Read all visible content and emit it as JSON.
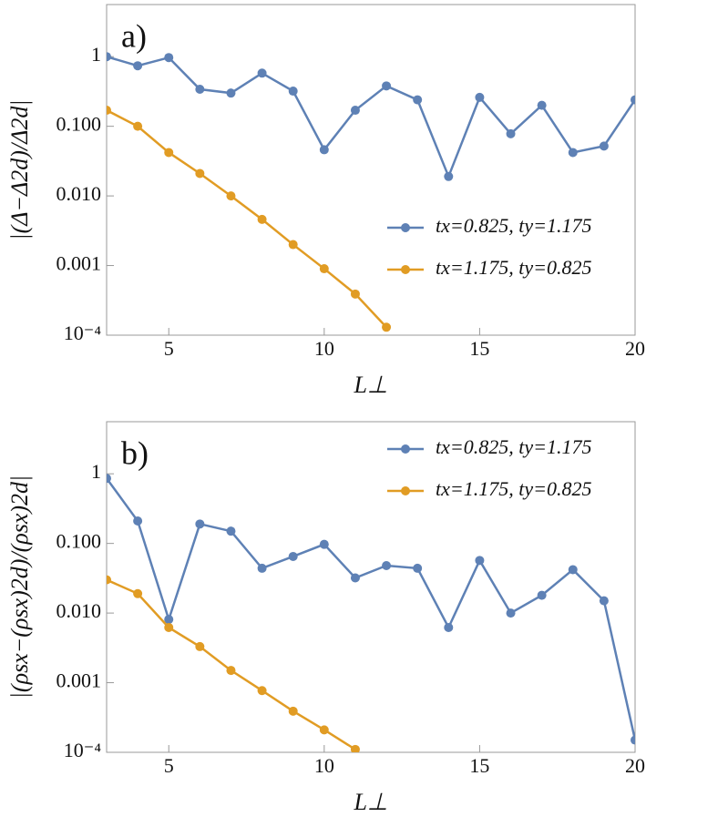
{
  "chart_data": [
    {
      "type": "line",
      "panel_label": "a)",
      "x_label": "L⊥",
      "y_label": "|(Δ−Δ2d)/Δ2d|",
      "log_y": true,
      "legend": "lower right",
      "xlim": [
        3,
        20
      ],
      "xticks": [
        5,
        10,
        15,
        20
      ],
      "ylim": [
        0.0001,
        5.6
      ],
      "yticks": [
        {
          "value": 0.0001,
          "label": "10⁻⁴"
        },
        {
          "value": 0.001,
          "label": "0.001"
        },
        {
          "value": 0.01,
          "label": "0.010"
        },
        {
          "value": 0.1,
          "label": "0.100"
        },
        1
      ],
      "x": [
        3,
        4,
        5,
        6,
        7,
        8,
        9,
        10,
        11,
        12,
        13,
        14,
        15,
        16,
        17,
        18,
        19,
        20
      ],
      "series": [
        {
          "name": "tx=0.825, ty=1.175",
          "color": "#5e81b5",
          "values": [
            1.0,
            0.74,
            0.97,
            0.34,
            0.3,
            0.58,
            0.32,
            0.046,
            0.17,
            0.38,
            0.24,
            0.019,
            0.26,
            0.078,
            0.2,
            0.042,
            0.052,
            0.24
          ]
        },
        {
          "name": "tx=1.175, ty=0.825",
          "color": "#e19c24",
          "values": [
            0.17,
            0.1,
            0.042,
            0.021,
            0.01,
            0.0046,
            0.002,
            0.0009,
            0.00039,
            0.00013,
            null,
            null,
            null,
            null,
            null,
            null,
            null,
            null
          ]
        }
      ]
    },
    {
      "type": "line",
      "panel_label": "b)",
      "x_label": "L⊥",
      "y_label": "|(ρsx−(ρsx)2d)/(ρsx)2d|",
      "log_y": true,
      "legend": "upper right",
      "xlim": [
        3,
        20
      ],
      "xticks": [
        5,
        10,
        15,
        20
      ],
      "ylim": [
        0.0001,
        5.6
      ],
      "yticks": [
        {
          "value": 0.0001,
          "label": "10⁻⁴"
        },
        {
          "value": 0.001,
          "label": "0.001"
        },
        {
          "value": 0.01,
          "label": "0.010"
        },
        {
          "value": 0.1,
          "label": "0.100"
        },
        1
      ],
      "x": [
        3,
        4,
        5,
        6,
        7,
        8,
        9,
        10,
        11,
        12,
        13,
        14,
        15,
        16,
        17,
        18,
        19,
        20
      ],
      "series": [
        {
          "name": "tx=0.825, ty=1.175",
          "color": "#5e81b5",
          "values": [
            0.86,
            0.21,
            0.0081,
            0.19,
            0.15,
            0.044,
            0.065,
            0.097,
            0.032,
            0.048,
            0.044,
            0.0062,
            0.057,
            0.01,
            0.018,
            0.042,
            0.015,
            0.00015
          ]
        },
        {
          "name": "tx=1.175, ty=0.825",
          "color": "#e19c24",
          "values": [
            0.03,
            0.019,
            0.0062,
            0.0033,
            0.0015,
            0.00077,
            0.00039,
            0.00021,
            0.00011,
            null,
            null,
            null,
            null,
            null,
            null,
            null,
            null,
            null
          ]
        }
      ]
    }
  ]
}
